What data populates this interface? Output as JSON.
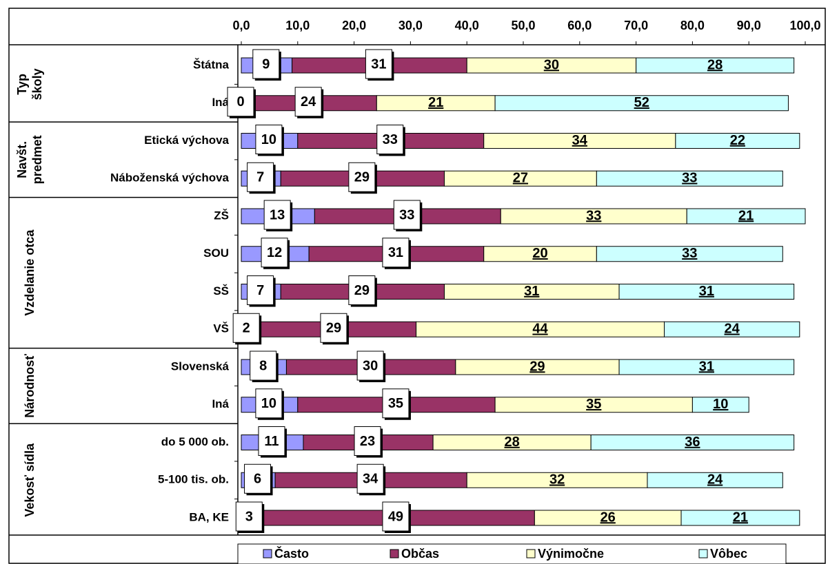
{
  "chart_data": {
    "type": "stacked-barh",
    "groups": [
      [
        "Typ",
        "školy"
      ],
      [
        "Navšt.",
        "predmet"
      ],
      [
        "Vzdelanie otca"
      ],
      [
        "Národnosť"
      ],
      [
        "Vekosť sídla"
      ]
    ],
    "categories": [
      "Štátna",
      "Iná",
      "Etická výchova",
      "Náboženská výchova",
      "ZŠ",
      "SOU",
      "SŠ",
      "VŠ",
      "Slovenská",
      "Iná",
      "do 5 000 ob.",
      "5-100 tis. ob.",
      "BA, KE"
    ],
    "series": [
      {
        "name": "Často",
        "color": "#9999ff",
        "values": [
          9,
          0,
          10,
          7,
          13,
          12,
          7,
          2,
          8,
          10,
          11,
          6,
          3
        ]
      },
      {
        "name": "Občas",
        "color": "#993366",
        "values": [
          31,
          24,
          33,
          29,
          33,
          31,
          29,
          29,
          30,
          35,
          23,
          34,
          49
        ]
      },
      {
        "name": "Výnimočne",
        "color": "#ffffcc",
        "values": [
          30,
          21,
          34,
          27,
          33,
          20,
          31,
          44,
          29,
          35,
          28,
          32,
          26
        ]
      },
      {
        "name": "Vôbec",
        "color": "#ccffff",
        "values": [
          28,
          52,
          22,
          33,
          21,
          33,
          31,
          24,
          31,
          10,
          36,
          24,
          21
        ]
      }
    ],
    "xlim": [
      0,
      100
    ],
    "xticks": [
      {
        "value": 0,
        "label": "0,0"
      },
      {
        "value": 10,
        "label": "10,0"
      },
      {
        "value": 20,
        "label": "20,0"
      },
      {
        "value": 30,
        "label": "30,0"
      },
      {
        "value": 40,
        "label": "40,0"
      },
      {
        "value": 50,
        "label": "50,0"
      },
      {
        "value": 60,
        "label": "60,0"
      },
      {
        "value": 70,
        "label": "70,0"
      },
      {
        "value": 80,
        "label": "80,0"
      },
      {
        "value": 90,
        "label": "90,0"
      },
      {
        "value": 100,
        "label": "100,0"
      }
    ],
    "legend": "bottom"
  }
}
